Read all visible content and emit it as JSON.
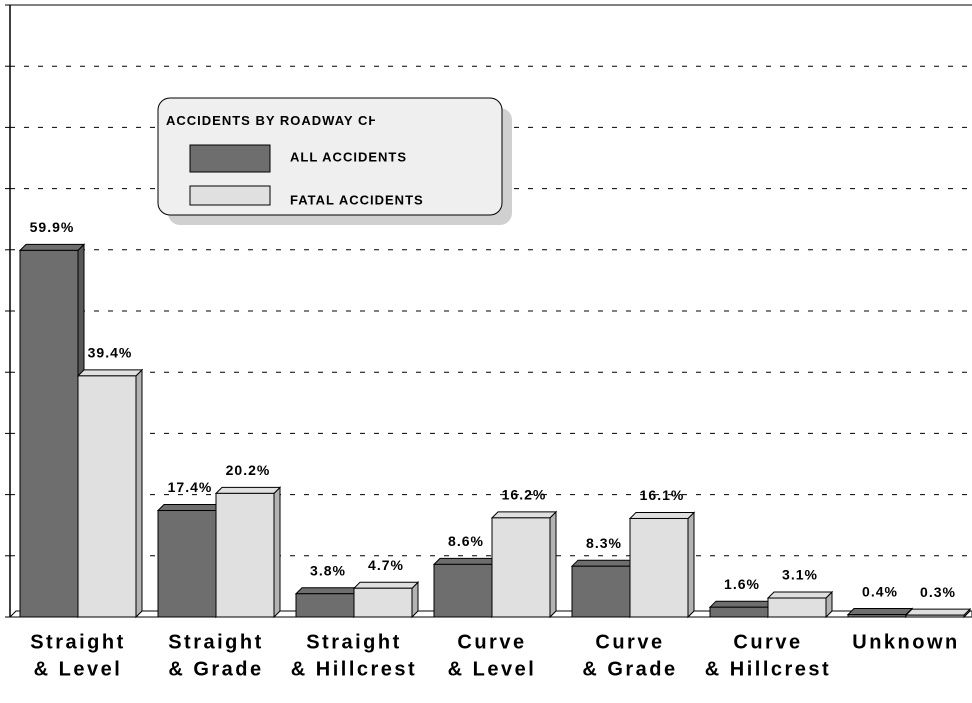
{
  "chart_data": {
    "type": "bar",
    "legend_title": "ACCIDENTS BY ROADWAY CHARACTER",
    "categories": [
      [
        "Straight",
        "& Level"
      ],
      [
        "Straight",
        "& Grade"
      ],
      [
        "Straight",
        "& Hillcrest"
      ],
      [
        "Curve",
        "& Level"
      ],
      [
        "Curve",
        "& Grade"
      ],
      [
        "Curve",
        "& Hillcrest"
      ],
      [
        "Unknown"
      ]
    ],
    "series": [
      {
        "name": "ALL ACCIDENTS",
        "color": "#6e6e6e",
        "values": [
          59.9,
          17.4,
          3.8,
          8.6,
          8.3,
          1.6,
          0.4
        ],
        "value_labels": [
          "59.9%",
          "17.4%",
          "3.8%",
          "8.6%",
          "8.3%",
          "1.6%",
          "0.4%"
        ]
      },
      {
        "name": "FATAL ACCIDENTS",
        "color": "#e0e0e0",
        "values": [
          39.4,
          20.2,
          4.7,
          16.2,
          16.1,
          3.1,
          0.3
        ],
        "value_labels": [
          "39.4%",
          "20.2%",
          "4.7%",
          "16.2%",
          "16.1%",
          "3.1%",
          "0.3%"
        ]
      }
    ],
    "ylim": [
      0,
      100
    ],
    "yticks": [
      0,
      10,
      20,
      30,
      40,
      50,
      60,
      70,
      80,
      90,
      100
    ],
    "grid": true
  }
}
